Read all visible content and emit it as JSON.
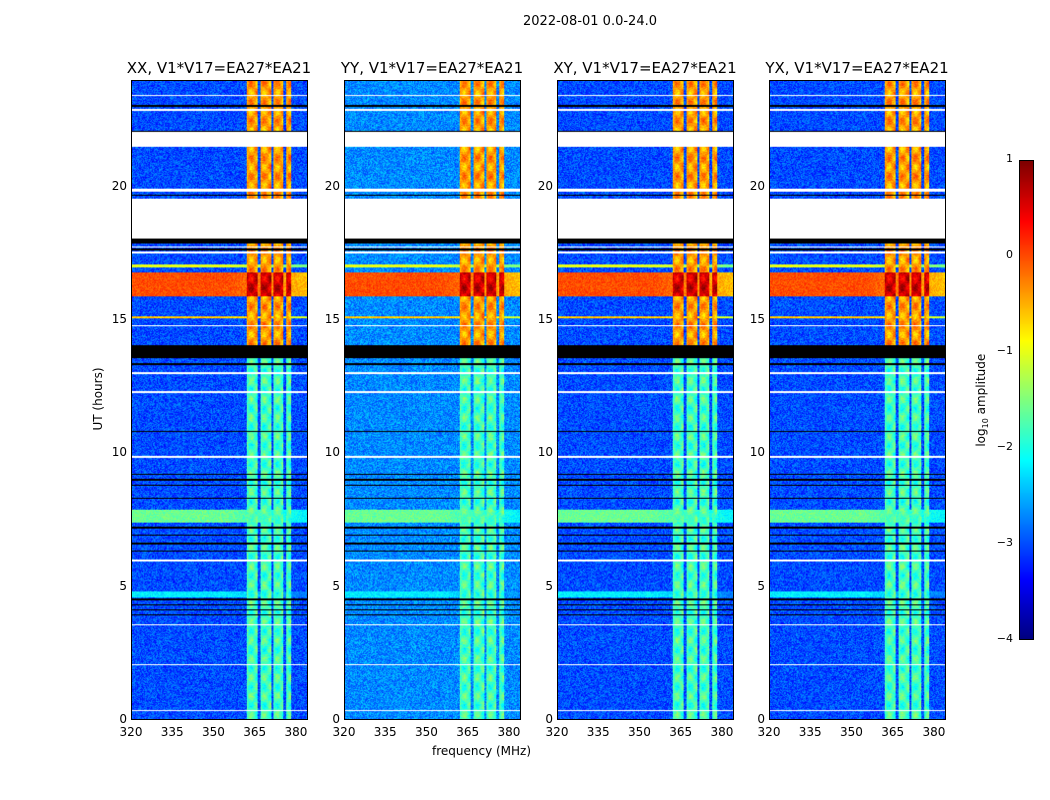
{
  "chart_data": {
    "type": "heatmap",
    "title": "2022-08-01 0.0-24.0",
    "xlabel": "frequency (MHz)",
    "ylabel": "UT (hours)",
    "xlim": [
      320,
      384.4
    ],
    "ylim": [
      0,
      24
    ],
    "xticks": [
      "320",
      "335",
      "350",
      "365",
      "380"
    ],
    "xtick_values": [
      320,
      335,
      350,
      365,
      380
    ],
    "yticks": [
      "0",
      "5",
      "10",
      "15",
      "20"
    ],
    "ytick_values": [
      0,
      5,
      10,
      15,
      20
    ],
    "colormap": "jet",
    "colorbar": {
      "label": "log10 amplitude",
      "label_main": "log",
      "label_sub": "10",
      "label_rest": " amplitude",
      "range": [
        -4,
        1
      ],
      "ticks": [
        "1",
        "0",
        "−1",
        "−2",
        "−3",
        "−4"
      ],
      "tick_values": [
        1,
        0,
        -1,
        -2,
        -3,
        -4
      ]
    },
    "panels": [
      {
        "title": "XX, V1*V17=EA27*EA21",
        "pol": "XX"
      },
      {
        "title": "YY, V1*V17=EA27*EA21",
        "pol": "YY"
      },
      {
        "title": "XY, V1*V17=EA27*EA21",
        "pol": "XY"
      },
      {
        "title": "YX, V1*V17=EA27*EA21",
        "pol": "YX"
      }
    ],
    "background_level_log10": -3.0,
    "rfi_band_mhz": [
      362,
      378.5
    ],
    "rfi_band_gaps_mhz": [
      366.5,
      371.5,
      376
    ],
    "rfi_level_log10": {
      "0-13.6h": -1.8,
      "14.1-24h": -0.4,
      "15.9-16.8h": 0.6
    },
    "broadband_rfi_hours": [
      [
        15.9,
        16.8,
        0.0
      ],
      [
        7.4,
        7.9,
        -1.6
      ],
      [
        4.6,
        4.8,
        -2.2
      ],
      [
        17.0,
        17.1,
        -1.0
      ],
      [
        15.1,
        15.15,
        -0.6
      ]
    ],
    "blank_hours": [
      [
        18.1,
        19.6
      ],
      [
        21.55,
        22.1
      ],
      [
        19.85,
        19.95
      ],
      [
        0.3,
        0.36
      ],
      [
        2.05,
        2.1
      ],
      [
        3.55,
        3.6
      ],
      [
        5.95,
        6.0
      ],
      [
        9.85,
        9.9
      ],
      [
        12.3,
        12.35
      ],
      [
        13.0,
        13.05
      ],
      [
        17.55,
        17.6
      ],
      [
        17.75,
        17.8
      ],
      [
        22.9,
        22.95
      ],
      [
        23.45,
        23.5
      ],
      [
        14.8,
        14.85
      ]
    ],
    "flagged_black_hours": [
      [
        13.6,
        14.1
      ],
      [
        13.35,
        13.4
      ],
      [
        17.9,
        18.1
      ],
      [
        17.65,
        17.7
      ],
      [
        10.8,
        10.85
      ],
      [
        9.2,
        9.25
      ],
      [
        9.0,
        9.05
      ],
      [
        8.8,
        8.85
      ],
      [
        8.3,
        8.35
      ],
      [
        7.2,
        7.25
      ],
      [
        6.9,
        6.95
      ],
      [
        6.6,
        6.65
      ],
      [
        6.3,
        6.35
      ],
      [
        4.5,
        4.55
      ],
      [
        4.3,
        4.35
      ],
      [
        4.1,
        4.15
      ],
      [
        3.9,
        3.95
      ],
      [
        22.1,
        22.15
      ],
      [
        23.05,
        23.1
      ],
      [
        19.7,
        19.75
      ]
    ]
  }
}
